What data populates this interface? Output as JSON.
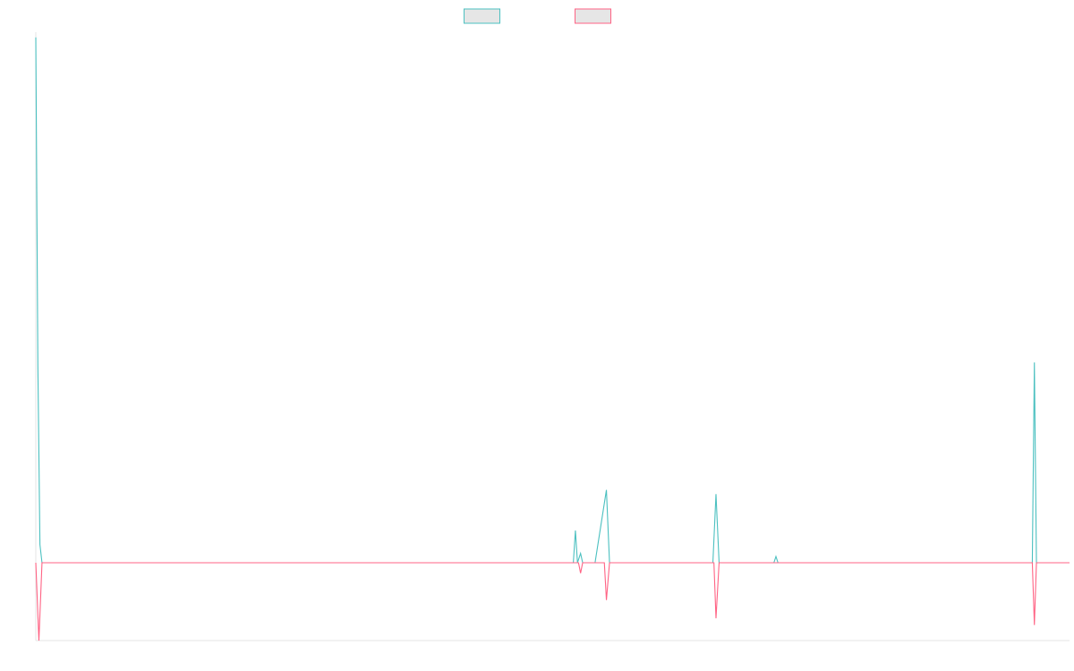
{
  "chart_data": {
    "type": "line",
    "title": "",
    "xlabel": "",
    "ylabel": "",
    "legend_position": "top-center",
    "grid": false,
    "xlim": [
      0,
      1000
    ],
    "ylim": [
      -150,
      1020
    ],
    "zero_line": 0,
    "series": [
      {
        "name": "",
        "color": "#4BC0C0",
        "fill": "#E6E6E6",
        "points": [
          [
            0,
            1010
          ],
          [
            2,
            380
          ],
          [
            4,
            35
          ],
          [
            6,
            0
          ],
          [
            520,
            0
          ],
          [
            522,
            62
          ],
          [
            524,
            0
          ],
          [
            527,
            18
          ],
          [
            529,
            0
          ],
          [
            541,
            0
          ],
          [
            552,
            140
          ],
          [
            555,
            0
          ],
          [
            655,
            0
          ],
          [
            658,
            132
          ],
          [
            661,
            0
          ],
          [
            714,
            0
          ],
          [
            716,
            12
          ],
          [
            718,
            0
          ],
          [
            964,
            0
          ],
          [
            966,
            385
          ],
          [
            968,
            0
          ],
          [
            1000,
            0
          ]
        ]
      },
      {
        "name": "",
        "color": "#FF6384",
        "fill": "#E6E6E6",
        "points": [
          [
            0,
            0
          ],
          [
            3,
            -150
          ],
          [
            6,
            0
          ],
          [
            525,
            0
          ],
          [
            527,
            -20
          ],
          [
            529,
            0
          ],
          [
            550,
            0
          ],
          [
            552,
            -72
          ],
          [
            555,
            0
          ],
          [
            656,
            0
          ],
          [
            658,
            -107
          ],
          [
            661,
            0
          ],
          [
            964,
            0
          ],
          [
            966,
            -120
          ],
          [
            968,
            0
          ],
          [
            1000,
            0
          ]
        ]
      }
    ]
  }
}
